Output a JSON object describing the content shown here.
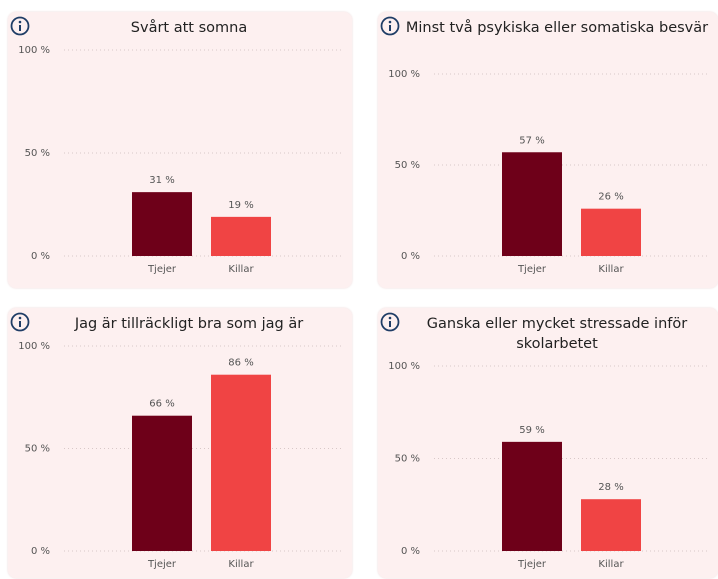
{
  "chart_data": [
    {
      "type": "bar",
      "title": "Svårt att somna",
      "categories": [
        "Tjejer",
        "Killar"
      ],
      "values": [
        31,
        19
      ],
      "value_labels": [
        "31 %",
        "19 %"
      ],
      "colors": [
        "#6e0019",
        "#f04444"
      ],
      "ylim": [
        0,
        100
      ],
      "yticks": [
        {
          "value": 0,
          "label": "0 %"
        },
        {
          "value": 50,
          "label": "50 %"
        },
        {
          "value": 100,
          "label": "100 %"
        }
      ],
      "grid": true
    },
    {
      "type": "bar",
      "title": "Minst två psykiska eller somatiska besvär",
      "categories": [
        "Tjejer",
        "Killar"
      ],
      "values": [
        57,
        26
      ],
      "value_labels": [
        "57 %",
        "26 %"
      ],
      "colors": [
        "#6e0019",
        "#f04444"
      ],
      "ylim": [
        0,
        100
      ],
      "yticks": [
        {
          "value": 0,
          "label": "0 %"
        },
        {
          "value": 50,
          "label": "50 %"
        },
        {
          "value": 100,
          "label": "100 %"
        }
      ],
      "grid": true
    },
    {
      "type": "bar",
      "title": "Jag är tillräckligt bra som jag är",
      "categories": [
        "Tjejer",
        "Killar"
      ],
      "values": [
        66,
        86
      ],
      "value_labels": [
        "66 %",
        "86 %"
      ],
      "colors": [
        "#6e0019",
        "#f04444"
      ],
      "ylim": [
        0,
        100
      ],
      "yticks": [
        {
          "value": 0,
          "label": "0 %"
        },
        {
          "value": 50,
          "label": "50 %"
        },
        {
          "value": 100,
          "label": "100 %"
        }
      ],
      "grid": true
    },
    {
      "type": "bar",
      "title": "Ganska eller mycket stressade inför skolarbetet",
      "categories": [
        "Tjejer",
        "Killar"
      ],
      "values": [
        59,
        28
      ],
      "value_labels": [
        "59 %",
        "28 %"
      ],
      "colors": [
        "#6e0019",
        "#f04444"
      ],
      "ylim": [
        0,
        100
      ],
      "yticks": [
        {
          "value": 0,
          "label": "0 %"
        },
        {
          "value": 50,
          "label": "50 %"
        },
        {
          "value": 100,
          "label": "100 %"
        }
      ],
      "grid": true
    }
  ]
}
